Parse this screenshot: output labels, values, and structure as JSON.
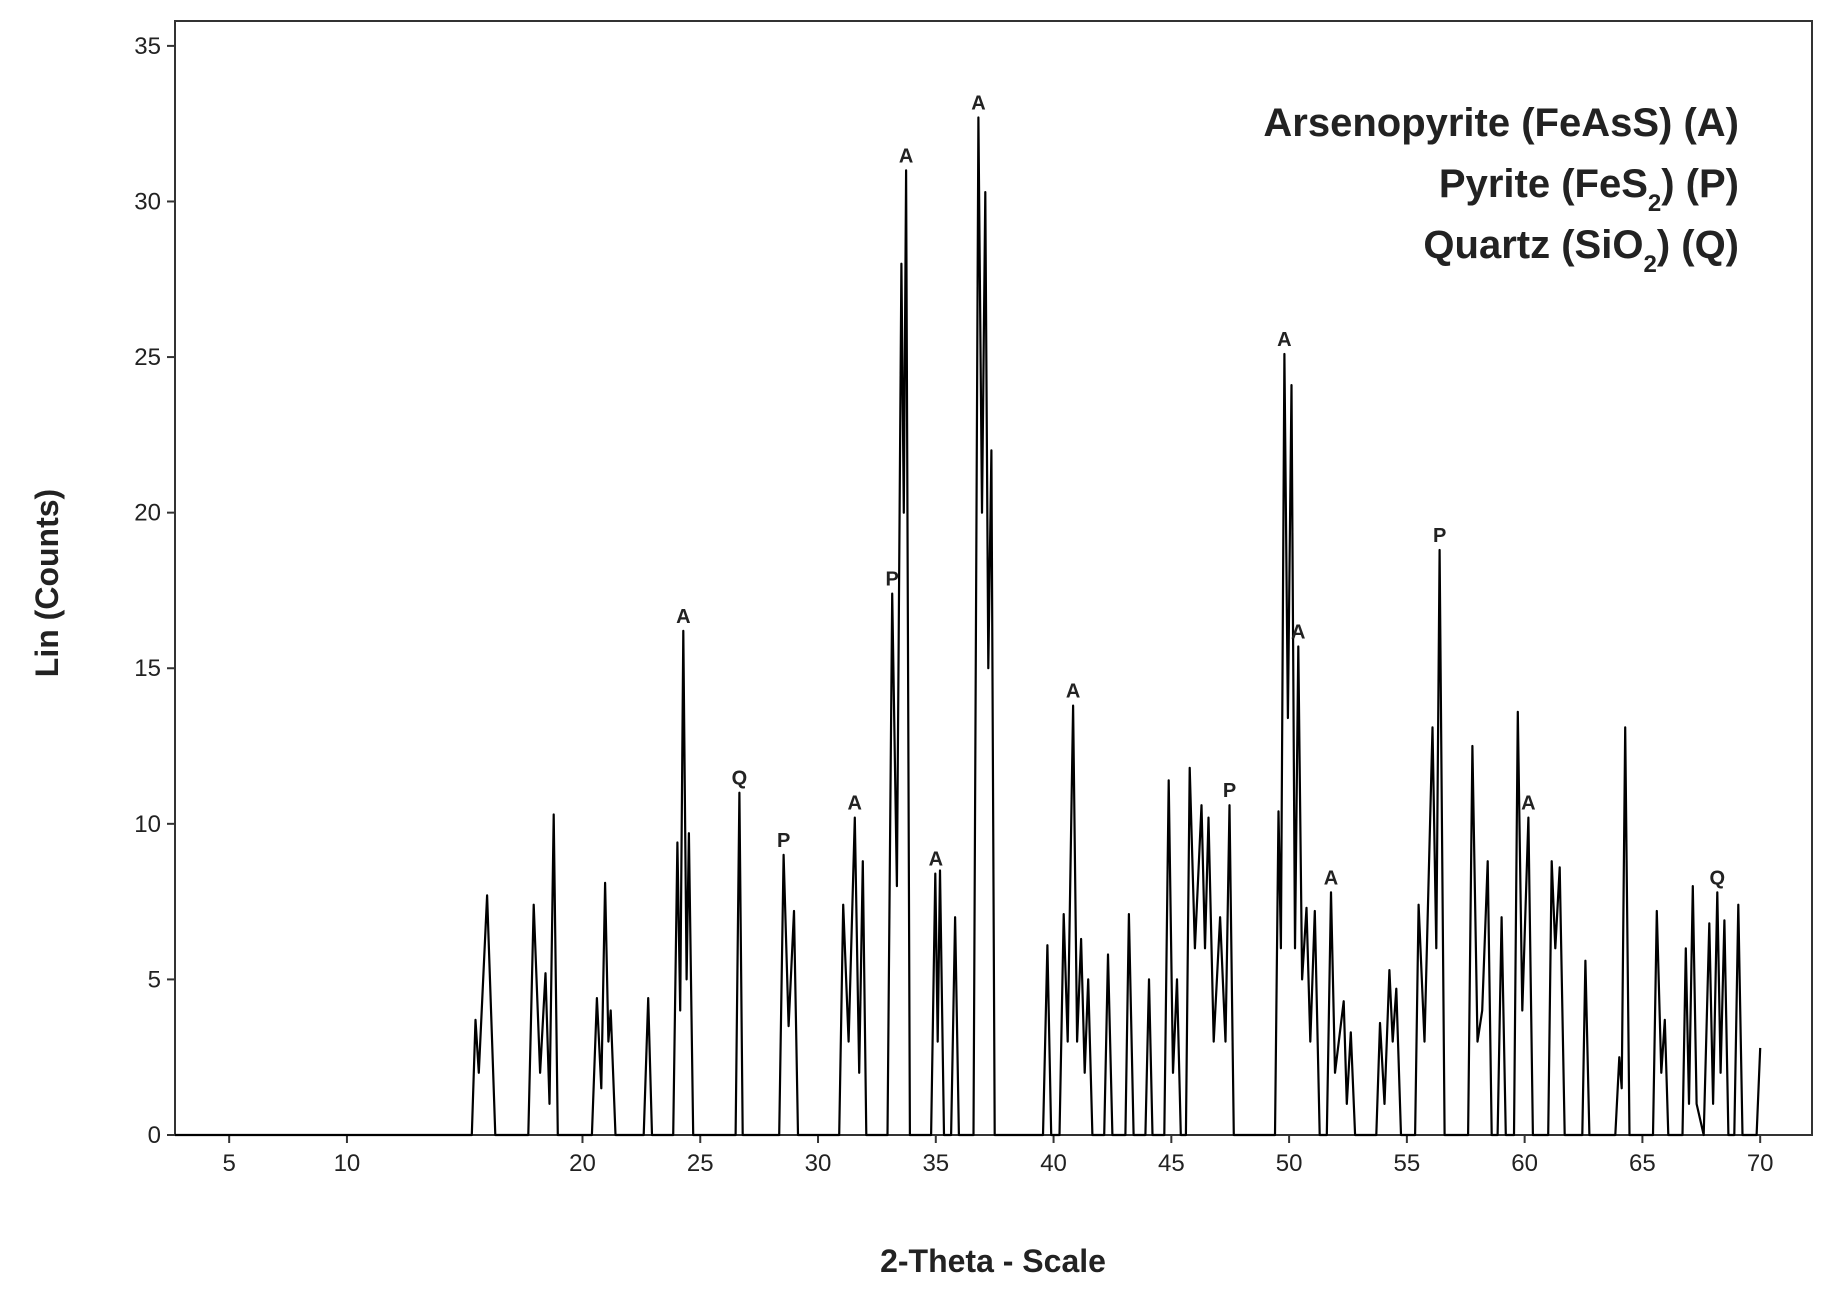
{
  "chart_data": {
    "type": "line",
    "xlabel": "2-Theta - Scale",
    "ylabel": "Lin (Counts)",
    "color": "#000000",
    "xlim": [
      2.7,
      72.2
    ],
    "ylim": [
      0,
      35.8
    ],
    "xticks": [
      5,
      10,
      20,
      25,
      30,
      35,
      40,
      45,
      50,
      55,
      60,
      65,
      70
    ],
    "yticks": [
      0,
      5,
      10,
      15,
      20,
      25,
      30,
      35
    ],
    "x": [
      2.7,
      15.3,
      15.46,
      15.6,
      15.95,
      16.3,
      17.7,
      17.93,
      18.2,
      18.43,
      18.6,
      18.78,
      18.95,
      20.4,
      20.61,
      20.8,
      20.96,
      21.1,
      21.2,
      21.4,
      22.6,
      22.79,
      22.95,
      23.85,
      24.03,
      24.15,
      24.28,
      24.42,
      24.52,
      24.7,
      26.5,
      26.66,
      26.8,
      28.35,
      28.54,
      28.75,
      28.98,
      29.15,
      30.9,
      31.07,
      31.3,
      31.56,
      31.75,
      31.9,
      32.05,
      32.95,
      33.15,
      33.35,
      33.54,
      33.64,
      33.74,
      33.9,
      34.8,
      34.98,
      35.08,
      35.18,
      35.35,
      35.65,
      35.82,
      35.98,
      36.6,
      36.81,
      36.96,
      37.1,
      37.23,
      37.36,
      37.5,
      39.55,
      39.74,
      39.9,
      40.25,
      40.43,
      40.6,
      40.83,
      41.0,
      41.17,
      41.32,
      41.47,
      41.65,
      42.15,
      42.31,
      42.5,
      43.05,
      43.2,
      43.4,
      43.9,
      44.05,
      44.2,
      44.7,
      44.89,
      45.07,
      45.24,
      45.4,
      45.62,
      45.78,
      46.0,
      46.28,
      46.43,
      46.58,
      46.8,
      47.07,
      47.3,
      47.47,
      47.65,
      49.4,
      49.55,
      49.65,
      49.8,
      49.95,
      50.1,
      50.25,
      50.39,
      50.55,
      50.74,
      50.9,
      51.09,
      51.3,
      51.6,
      51.78,
      51.95,
      52.32,
      52.45,
      52.62,
      52.8,
      53.7,
      53.86,
      54.05,
      54.26,
      54.4,
      54.55,
      54.75,
      55.35,
      55.5,
      55.75,
      56.09,
      56.25,
      56.39,
      56.6,
      57.6,
      57.78,
      58.0,
      58.2,
      58.43,
      58.6,
      58.85,
      59.02,
      59.2,
      59.55,
      59.71,
      59.9,
      60.16,
      60.35,
      61.0,
      61.15,
      61.3,
      61.49,
      61.7,
      62.45,
      62.58,
      62.75,
      63.85,
      64.02,
      64.12,
      64.27,
      64.45,
      65.45,
      65.61,
      65.8,
      65.95,
      66.1,
      66.7,
      66.84,
      66.98,
      67.14,
      67.3,
      67.6,
      67.84,
      68.0,
      68.18,
      68.32,
      68.48,
      68.65,
      68.9,
      69.07,
      69.25,
      69.85,
      70.0
    ],
    "values": [
      0,
      0,
      3.7,
      2,
      7.7,
      0,
      0,
      7.4,
      2,
      5.2,
      1,
      10.3,
      0,
      0,
      4.4,
      1.5,
      8.1,
      3,
      4,
      0,
      0,
      4.4,
      0,
      0,
      9.4,
      4,
      16.2,
      5,
      9.7,
      0,
      0,
      11,
      0,
      0,
      9,
      3.5,
      7.2,
      0,
      0,
      7.4,
      3,
      10.2,
      2,
      8.8,
      0,
      0,
      17.4,
      8,
      28,
      20,
      31,
      0,
      0,
      8.4,
      3,
      8.5,
      0,
      0,
      7,
      0,
      0,
      32.7,
      20,
      30.3,
      15,
      22,
      0,
      0,
      6.1,
      0,
      0,
      7.1,
      3,
      13.8,
      3,
      6.3,
      2,
      5,
      0,
      0,
      5.8,
      0,
      0,
      7.1,
      0,
      0,
      5,
      0,
      0,
      11.4,
      2,
      5,
      0,
      0,
      11.8,
      6,
      10.6,
      6,
      10.2,
      3,
      7,
      3,
      10.6,
      0,
      0,
      10.4,
      6,
      25.1,
      13.4,
      24.1,
      6,
      15.7,
      5,
      7.3,
      3,
      7.2,
      0,
      0,
      7.8,
      2,
      4.3,
      1,
      3.3,
      0,
      0,
      3.6,
      1,
      5.3,
      3,
      4.7,
      0,
      0,
      7.4,
      3,
      13.1,
      6,
      18.8,
      0,
      0,
      12.5,
      3,
      4,
      8.8,
      0,
      0,
      7,
      0,
      0,
      13.6,
      4,
      10.2,
      0,
      0,
      8.8,
      6,
      8.6,
      0,
      0,
      5.6,
      0,
      0,
      2.5,
      1.5,
      13.1,
      0,
      0,
      7.2,
      2,
      3.7,
      0,
      0,
      6,
      1,
      8,
      1,
      0,
      6.8,
      1,
      7.8,
      2,
      6.9,
      0,
      0,
      7.4,
      0,
      0,
      2.8
    ],
    "annotations": [
      {
        "text": "A",
        "x": 24.28,
        "y": 16.2
      },
      {
        "text": "Q",
        "x": 26.66,
        "y": 11
      },
      {
        "text": "P",
        "x": 28.54,
        "y": 9
      },
      {
        "text": "A",
        "x": 31.56,
        "y": 10.2
      },
      {
        "text": "P",
        "x": 33.15,
        "y": 17.4
      },
      {
        "text": "A",
        "x": 33.74,
        "y": 31
      },
      {
        "text": "A",
        "x": 35.0,
        "y": 8.4
      },
      {
        "text": "A",
        "x": 36.81,
        "y": 32.7
      },
      {
        "text": "A",
        "x": 40.83,
        "y": 13.8
      },
      {
        "text": "P",
        "x": 47.47,
        "y": 10.6
      },
      {
        "text": "A",
        "x": 49.8,
        "y": 25.1
      },
      {
        "text": "A",
        "x": 50.39,
        "y": 15.7
      },
      {
        "text": "A",
        "x": 51.78,
        "y": 7.8
      },
      {
        "text": "P",
        "x": 56.39,
        "y": 18.8
      },
      {
        "text": "A",
        "x": 60.16,
        "y": 10.2
      },
      {
        "text": "Q",
        "x": 68.18,
        "y": 7.8
      }
    ],
    "legend_text": [
      [
        "Arsenopyrite (FeAsS) (A)"
      ],
      [
        "Pyrite (FeS",
        "2",
        ") (P)"
      ],
      [
        "Quartz (SiO",
        "2",
        ") (Q)"
      ]
    ]
  }
}
